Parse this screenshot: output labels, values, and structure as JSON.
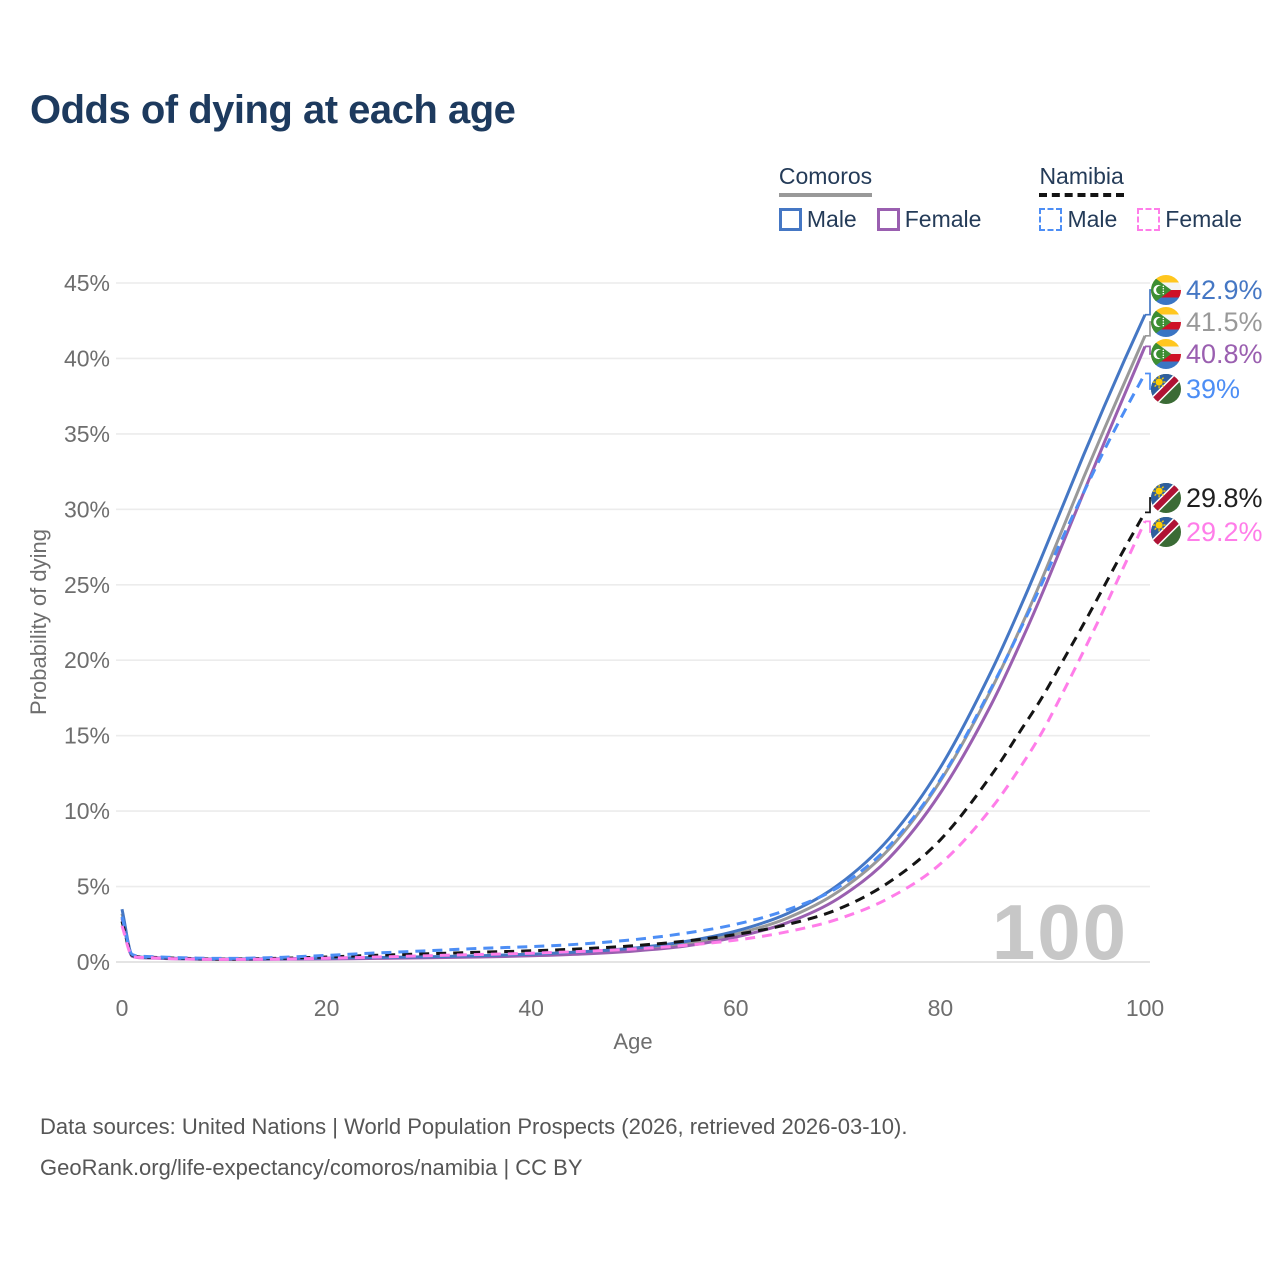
{
  "title": "Odds of dying at each age",
  "legend": {
    "groups": [
      {
        "label": "Comoros",
        "line_style": "solid",
        "line_color": "#999999",
        "items": [
          {
            "label": "Male",
            "color": "#4577c4"
          },
          {
            "label": "Female",
            "color": "#9a5fb0"
          }
        ]
      },
      {
        "label": "Namibia",
        "line_style": "dashed",
        "line_color": "#141414",
        "items": [
          {
            "label": "Male",
            "color": "#4d8ef5"
          },
          {
            "label": "Female",
            "color": "#ff7de9"
          }
        ]
      }
    ]
  },
  "watermark": "100",
  "footer": {
    "line1": "Data sources: United Nations | World Population Prospects (2026, retrieved 2026-03-10).",
    "line2": "GeoRank.org/life-expectancy/comoros/namibia | CC BY"
  },
  "chart_data": {
    "type": "line",
    "title": "Odds of dying at each age",
    "xlabel": "Age",
    "ylabel": "Probability of dying",
    "xlim": [
      0,
      100
    ],
    "ylim": [
      0,
      45
    ],
    "x_ticks": [
      0,
      20,
      40,
      60,
      80,
      100
    ],
    "y_ticks_percent": [
      0,
      5,
      10,
      15,
      20,
      25,
      30,
      35,
      40,
      45
    ],
    "grid": true,
    "legend_position": "top-right",
    "age_watermark": "100",
    "ages": [
      0,
      1,
      2,
      5,
      10,
      15,
      20,
      25,
      30,
      35,
      40,
      45,
      50,
      55,
      60,
      65,
      70,
      75,
      80,
      85,
      88,
      90,
      92,
      94,
      96,
      98,
      100
    ],
    "series": [
      {
        "id": "comoros_male",
        "name": "Comoros — Male",
        "country": "Comoros",
        "sex": "Male",
        "color": "#4577c4",
        "dash": false,
        "end_label": "42.9%",
        "label_color": "#4577c4",
        "values": [
          3.5,
          0.45,
          0.32,
          0.25,
          0.2,
          0.22,
          0.26,
          0.3,
          0.35,
          0.42,
          0.52,
          0.68,
          0.92,
          1.35,
          2.05,
          3.2,
          5.1,
          8.2,
          12.9,
          19.3,
          23.8,
          27.0,
          30.3,
          33.6,
          36.8,
          39.9,
          42.9
        ]
      },
      {
        "id": "comoros_both",
        "name": "Comoros — Both sexes",
        "country": "Comoros",
        "sex": "Both",
        "color": "#999999",
        "dash": false,
        "end_label": "41.5%",
        "label_color": "#999999",
        "values": [
          3.2,
          0.42,
          0.3,
          0.23,
          0.18,
          0.2,
          0.23,
          0.27,
          0.31,
          0.37,
          0.46,
          0.6,
          0.82,
          1.2,
          1.85,
          2.9,
          4.65,
          7.5,
          12.0,
          18.1,
          22.4,
          25.5,
          28.8,
          32.1,
          35.3,
          38.4,
          41.5
        ]
      },
      {
        "id": "comoros_female",
        "name": "Comoros — Female",
        "country": "Comoros",
        "sex": "Female",
        "color": "#9a5fb0",
        "dash": false,
        "end_label": "40.8%",
        "label_color": "#9a5fb0",
        "values": [
          2.9,
          0.38,
          0.28,
          0.21,
          0.17,
          0.18,
          0.2,
          0.24,
          0.28,
          0.33,
          0.41,
          0.53,
          0.72,
          1.05,
          1.65,
          2.6,
          4.2,
          6.9,
          11.2,
          17.1,
          21.4,
          24.5,
          27.8,
          31.1,
          34.4,
          37.6,
          40.8
        ]
      },
      {
        "id": "namibia_male",
        "name": "Namibia — Male",
        "country": "Namibia",
        "sex": "Male",
        "color": "#4d8ef5",
        "dash": true,
        "end_label": "39%",
        "label_color": "#4d8ef5",
        "values": [
          3.0,
          0.5,
          0.38,
          0.3,
          0.24,
          0.3,
          0.44,
          0.6,
          0.75,
          0.9,
          1.02,
          1.2,
          1.48,
          1.9,
          2.5,
          3.45,
          4.95,
          7.7,
          12.1,
          18.2,
          22.3,
          25.2,
          28.2,
          31.1,
          33.9,
          36.5,
          39.0
        ]
      },
      {
        "id": "namibia_both",
        "name": "Namibia — Both sexes",
        "country": "Namibia",
        "sex": "Both",
        "color": "#141414",
        "dash": true,
        "end_label": "29.8%",
        "label_color": "#1f1f1f",
        "values": [
          2.7,
          0.45,
          0.33,
          0.26,
          0.2,
          0.24,
          0.33,
          0.45,
          0.55,
          0.65,
          0.74,
          0.88,
          1.08,
          1.38,
          1.82,
          2.48,
          3.5,
          5.3,
          8.1,
          12.4,
          15.5,
          17.6,
          20.0,
          22.4,
          24.9,
          27.4,
          29.8
        ]
      },
      {
        "id": "namibia_female",
        "name": "Namibia — Female",
        "country": "Namibia",
        "sex": "Female",
        "color": "#ff7de9",
        "dash": true,
        "end_label": "29.2%",
        "label_color": "#ff7de9",
        "values": [
          2.4,
          0.4,
          0.3,
          0.22,
          0.17,
          0.19,
          0.25,
          0.33,
          0.42,
          0.5,
          0.58,
          0.7,
          0.86,
          1.1,
          1.45,
          2.0,
          2.85,
          4.25,
          6.5,
          10.2,
          13.1,
          15.3,
          17.9,
          20.6,
          23.4,
          26.3,
          29.2
        ]
      }
    ]
  }
}
